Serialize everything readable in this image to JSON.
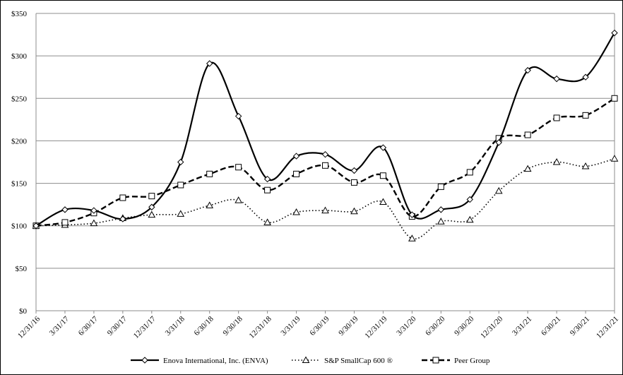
{
  "chart_data": {
    "type": "line",
    "title": "",
    "xlabel": "",
    "ylabel": "",
    "ylim": [
      0,
      350
    ],
    "y_ticks": [
      0,
      50,
      100,
      150,
      200,
      250,
      300,
      350
    ],
    "y_tick_labels": [
      "$0",
      "$50",
      "$100",
      "$150",
      "$200",
      "$250",
      "$300",
      "$350"
    ],
    "grid": "horizontal",
    "legend_position": "bottom",
    "categories": [
      "12/31/16",
      "3/31/17",
      "6/30/17",
      "9/30/17",
      "12/31/17",
      "3/31/18",
      "6/30/18",
      "9/30/18",
      "12/31/18",
      "3/31/19",
      "6/30/19",
      "9/30/19",
      "12/31/19",
      "3/31/20",
      "6/30/20",
      "9/30/20",
      "12/31/20",
      "3/31/21",
      "6/30/21",
      "9/30/21",
      "12/31/21"
    ],
    "series": [
      {
        "name": "Enova International, Inc. (ENVA)",
        "marker": "diamond",
        "line_style": "solid",
        "color": "#000000",
        "values": [
          100,
          119,
          118,
          108,
          122,
          175,
          291,
          229,
          155,
          182,
          184,
          165,
          192,
          113,
          119,
          131,
          198,
          283,
          273,
          275,
          327
        ]
      },
      {
        "name": "S&P SmallCap 600 ®",
        "marker": "triangle",
        "line_style": "dotted",
        "color": "#000000",
        "values": [
          100,
          101,
          103,
          109,
          113,
          114,
          124,
          130,
          104,
          116,
          118,
          117,
          128,
          85,
          105,
          107,
          141,
          167,
          175,
          170,
          179
        ]
      },
      {
        "name": "Peer Group",
        "marker": "square",
        "line_style": "dashed",
        "color": "#000000",
        "values": [
          100,
          104,
          115,
          133,
          135,
          148,
          161,
          169,
          142,
          161,
          171,
          151,
          159,
          111,
          146,
          163,
          203,
          207,
          227,
          230,
          250
        ]
      }
    ]
  }
}
